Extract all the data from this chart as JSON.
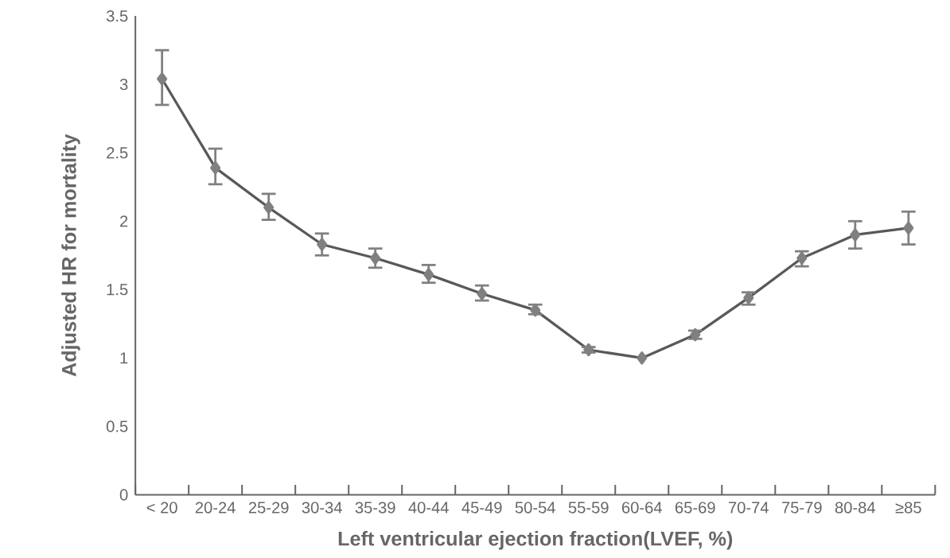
{
  "chart_data": {
    "type": "line",
    "xlabel": "Left ventricular ejection fraction(LVEF, %)",
    "ylabel": "Adjusted HR for mortality",
    "categories": [
      "< 20",
      "20-24",
      "25-29",
      "30-34",
      "35-39",
      "40-44",
      "45-49",
      "50-54",
      "55-59",
      "60-64",
      "65-69",
      "70-74",
      "75-79",
      "80-84",
      "≥85"
    ],
    "series": [
      {
        "color": "#595959",
        "values": [
          3.04,
          2.39,
          2.1,
          1.83,
          1.73,
          1.61,
          1.47,
          1.35,
          1.06,
          1.0,
          1.17,
          1.44,
          1.73,
          1.9,
          1.95
        ],
        "errors": [
          [
            2.85,
            3.25
          ],
          [
            2.27,
            2.53
          ],
          [
            2.01,
            2.2
          ],
          [
            1.75,
            1.91
          ],
          [
            1.66,
            1.8
          ],
          [
            1.55,
            1.68
          ],
          [
            1.42,
            1.53
          ],
          [
            1.32,
            1.39
          ],
          [
            1.04,
            1.08
          ],
          null,
          [
            1.14,
            1.2
          ],
          [
            1.39,
            1.48
          ],
          [
            1.67,
            1.78
          ],
          [
            1.8,
            2.0
          ],
          [
            1.83,
            2.07
          ]
        ]
      }
    ],
    "ylim": [
      0,
      3.5
    ],
    "yticks": [
      0,
      0.5,
      1,
      1.5,
      2,
      2.5,
      3,
      3.5
    ],
    "grid": false,
    "legend": false,
    "marker": "diamond",
    "line_style": "solid"
  }
}
